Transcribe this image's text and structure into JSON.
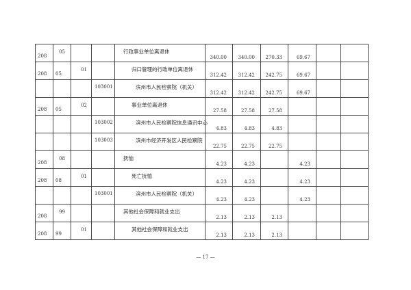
{
  "rows": [
    {
      "c1": "208",
      "c2": "05",
      "c3": "",
      "c4": "",
      "name": "行政事业单位离退休",
      "indent": 0,
      "v1": "340.00",
      "v2": "340.00",
      "v3": "270.33",
      "v4": "69.67"
    },
    {
      "c1": "208",
      "c2": "05",
      "c3": "01",
      "c4": "",
      "name": "归口管理的行政单位离退休",
      "indent": 2,
      "v1": "312.42",
      "v2": "312.42",
      "v3": "242.75",
      "v4": "69.67"
    },
    {
      "c1": "",
      "c2": "",
      "c3": "",
      "c4": "103001",
      "name": "滨州市人民检察院（机关）",
      "indent": 3,
      "v1": "312.42",
      "v2": "312.42",
      "v3": "242.75",
      "v4": "69.67"
    },
    {
      "c1": "208",
      "c2": "05",
      "c3": "02",
      "c4": "",
      "name": "事业单位离退休",
      "indent": 2,
      "v1": "27.58",
      "v2": "27.58",
      "v3": "27.58",
      "v4": ""
    },
    {
      "c1": "",
      "c2": "",
      "c3": "",
      "c4": "103002",
      "name": "滨州市人民检察院信息通讯中心",
      "indent": 3,
      "v1": "4.83",
      "v2": "4.83",
      "v3": "4.83",
      "v4": ""
    },
    {
      "c1": "",
      "c2": "",
      "c3": "",
      "c4": "103003",
      "name": "滨州市经济开发区人民检察院",
      "indent": 3,
      "v1": "22.75",
      "v2": "22.75",
      "v3": "22.75",
      "v4": ""
    },
    {
      "c1": "208",
      "c2": "08",
      "c3": "",
      "c4": "",
      "name": "抚恤",
      "indent": 0,
      "v1": "4.23",
      "v2": "4.23",
      "v3": "",
      "v4": "4.23"
    },
    {
      "c1": "208",
      "c2": "08",
      "c3": "01",
      "c4": "",
      "name": "死亡抚恤",
      "indent": 2,
      "v1": "4.23",
      "v2": "4.23",
      "v3": "",
      "v4": "4.23"
    },
    {
      "c1": "",
      "c2": "",
      "c3": "",
      "c4": "103001",
      "name": "滨州市人民检察院（机关）",
      "indent": 3,
      "v1": "4.23",
      "v2": "4.23",
      "v3": "",
      "v4": "4.23"
    },
    {
      "c1": "208",
      "c2": "99",
      "c3": "",
      "c4": "",
      "name": "其他社会保障和就业支出",
      "indent": 0,
      "v1": "2.13",
      "v2": "2.13",
      "v3": "2.13",
      "v4": ""
    },
    {
      "c1": "208",
      "c2": "99",
      "c3": "01",
      "c4": "",
      "name": "其他社会保障和就业支出",
      "indent": 2,
      "v1": "2.13",
      "v2": "2.13",
      "v3": "2.13",
      "v4": ""
    }
  ],
  "page_number": "— 17 —"
}
